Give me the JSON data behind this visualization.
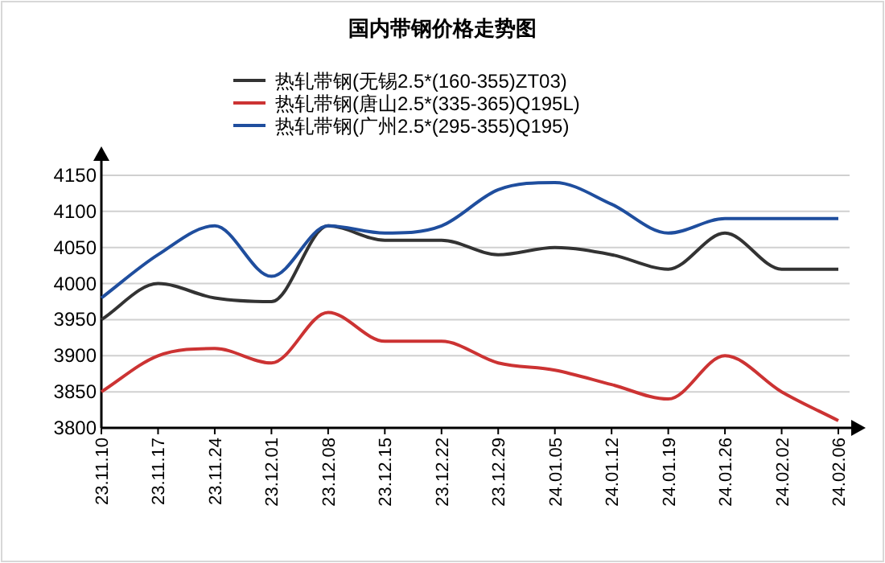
{
  "chart_data": {
    "type": "line",
    "title": "国内带钢价格走势图",
    "categories": [
      "23.11.10",
      "23.11.17",
      "23.11.24",
      "23.12.01",
      "23.12.08",
      "23.12.15",
      "23.12.22",
      "23.12.29",
      "24.01.05",
      "24.01.12",
      "24.01.19",
      "24.01.26",
      "24.02.02",
      "24.02.06"
    ],
    "series": [
      {
        "name": "热轧带钢(无锡2.5*(160-355)ZT03)",
        "color": "#333333",
        "values": [
          3950,
          4000,
          3980,
          3975,
          4080,
          4060,
          4060,
          4040,
          4050,
          4040,
          4020,
          4070,
          4020,
          4020
        ]
      },
      {
        "name": "热轧带钢(唐山2.5*(335-365)Q195L)",
        "color": "#cc3333",
        "values": [
          3850,
          3900,
          3910,
          3890,
          3960,
          3920,
          3920,
          3890,
          3880,
          3860,
          3840,
          3900,
          3850,
          3810
        ]
      },
      {
        "name": "热轧带钢(广州2.5*(295-355)Q195)",
        "color": "#1f4e9e",
        "values": [
          3980,
          4040,
          4080,
          4010,
          4080,
          4070,
          4080,
          4130,
          4140,
          4110,
          4070,
          4090,
          4090,
          4090
        ]
      }
    ],
    "ylim": [
      3800,
      4150
    ],
    "yticks": [
      3800,
      3850,
      3900,
      3950,
      4000,
      4050,
      4100,
      4150
    ],
    "grid": "y",
    "legend": "top left",
    "marker": "none"
  }
}
